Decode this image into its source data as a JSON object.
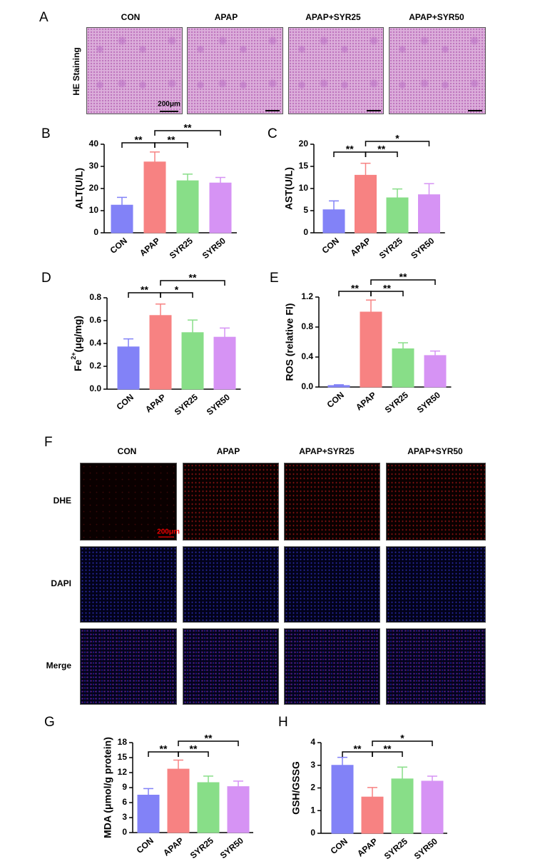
{
  "panel_a": {
    "letter": "A",
    "columns": [
      "CON",
      "APAP",
      "APAP+SYR25",
      "APAP+SYR50"
    ],
    "row_label": "HE Staining",
    "scale_bar": "200μm"
  },
  "panel_f": {
    "letter": "F",
    "columns": [
      "CON",
      "APAP",
      "APAP+SYR25",
      "APAP+SYR50"
    ],
    "rows": [
      "DHE",
      "DAPI",
      "Merge"
    ],
    "scale_bar": "200μm"
  },
  "chart_data": [
    {
      "type": "bar",
      "letter": "B",
      "ylabel": "ALT(U/L)",
      "categories": [
        "CON",
        "APAP",
        "SYR25",
        "SYR50"
      ],
      "values": [
        12.5,
        32,
        23.5,
        22.5
      ],
      "errors": [
        3.5,
        4.5,
        3,
        2.5
      ],
      "colors": [
        "#8282f7",
        "#f78282",
        "#88de88",
        "#d693f4"
      ],
      "ylim": [
        0,
        40
      ],
      "yticks": [
        0,
        10,
        20,
        30,
        40
      ],
      "significance": [
        "**",
        "**",
        "**"
      ]
    },
    {
      "type": "bar",
      "letter": "C",
      "ylabel": "AST(U/L)",
      "categories": [
        "CON",
        "APAP",
        "SYR25",
        "SYR50"
      ],
      "values": [
        5.2,
        13,
        7.9,
        8.6
      ],
      "errors": [
        2,
        2.7,
        2,
        2.5
      ],
      "colors": [
        "#8282f7",
        "#f78282",
        "#88de88",
        "#d693f4"
      ],
      "ylim": [
        0,
        20
      ],
      "yticks": [
        0,
        5,
        10,
        15,
        20
      ],
      "significance": [
        "**",
        "**",
        "*"
      ]
    },
    {
      "type": "bar",
      "letter": "D",
      "ylabel": {
        "text": "Fe",
        "superscript": "2+",
        "unit": "(μg/mg)"
      },
      "categories": [
        "CON",
        "APAP",
        "SYR25",
        "SYR50"
      ],
      "values": [
        0.37,
        0.645,
        0.495,
        0.455
      ],
      "errors": [
        0.07,
        0.1,
        0.11,
        0.08
      ],
      "colors": [
        "#8282f7",
        "#f78282",
        "#88de88",
        "#d693f4"
      ],
      "ylim": [
        0,
        0.8
      ],
      "yticks": [
        {
          "value": 0,
          "label": "0.0"
        },
        0.2,
        0.4,
        0.6,
        0.8
      ],
      "significance": [
        "**",
        "*",
        "**"
      ]
    },
    {
      "type": "bar",
      "letter": "E",
      "ylabel": "ROS (relative FI)",
      "categories": [
        "CON",
        "APAP",
        "SYR25",
        "SYR50"
      ],
      "values": [
        0.02,
        1.0,
        0.51,
        0.42
      ],
      "errors": [
        0.01,
        0.16,
        0.08,
        0.06
      ],
      "colors": [
        "#8282f7",
        "#f78282",
        "#88de88",
        "#d693f4"
      ],
      "ylim": [
        0,
        1.2
      ],
      "yticks": [
        {
          "value": 0,
          "label": "0.0"
        },
        0.4,
        0.8,
        1.2
      ],
      "significance": [
        "**",
        "**",
        "**"
      ]
    },
    {
      "type": "bar",
      "letter": "G",
      "ylabel": "MDA (μmol/g protein)",
      "categories": [
        "CON",
        "APAP",
        "SYR25",
        "SYR50"
      ],
      "values": [
        7.5,
        12.7,
        10,
        9.2
      ],
      "errors": [
        1.3,
        1.8,
        1.3,
        1.1
      ],
      "colors": [
        "#8282f7",
        "#f78282",
        "#88de88",
        "#d693f4"
      ],
      "ylim": [
        0,
        18
      ],
      "yticks": [
        0,
        3,
        6,
        9,
        12,
        15,
        18
      ],
      "significance": [
        "**",
        "**",
        "**"
      ]
    },
    {
      "type": "bar",
      "letter": "H",
      "ylabel": "GSH/GSSG",
      "categories": [
        "CON",
        "APAP",
        "SYR25",
        "SYR50"
      ],
      "values": [
        3.0,
        1.6,
        2.4,
        2.3
      ],
      "errors": [
        0.35,
        0.42,
        0.52,
        0.22
      ],
      "colors": [
        "#8282f7",
        "#f78282",
        "#88de88",
        "#d693f4"
      ],
      "ylim": [
        0,
        4
      ],
      "yticks": [
        0,
        1,
        2,
        3,
        4
      ],
      "significance": [
        "**",
        "**",
        "*"
      ]
    }
  ]
}
